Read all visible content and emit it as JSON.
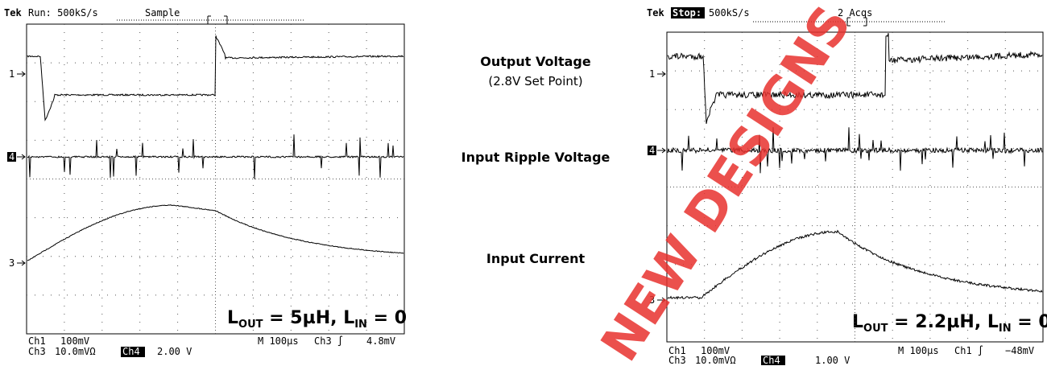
{
  "left_scope": {
    "tek": "Tek",
    "state": "Run: 500kS/s",
    "mode": "Sample",
    "markers": [
      "1",
      "4",
      "3"
    ],
    "caption": {
      "main1": "L",
      "sub1": "OUT",
      "main2": " = 5µH, L",
      "sub2": "IN",
      "main3": " = 0"
    },
    "status": {
      "ch1": "Ch1",
      "ch1_scale": "100mV",
      "ch3": "Ch3",
      "ch3_scale": "10.0mVΩ",
      "ch4": "Ch4",
      "ch4_scale": "2.00 V",
      "time": "M 100µs",
      "trigger": "Ch3 ∫",
      "level": "4.8mV"
    }
  },
  "labels": {
    "output": "Output Voltage",
    "setpoint": "(2.8V Set Point)",
    "ripple": "Input Ripple Voltage",
    "current": "Input Current"
  },
  "right_scope": {
    "tek": "Tek",
    "state": "Stop:",
    "rate": "500kS/s",
    "acqs": "2 Acqs",
    "markers": [
      "1",
      "4",
      "3"
    ],
    "caption": {
      "main1": "L",
      "sub1": "OUT",
      "main2": " = 2.2µH, L",
      "sub2": "IN",
      "main3": " = 0"
    },
    "status": {
      "ch1": "Ch1",
      "ch1_scale": "100mV",
      "ch3": "Ch3",
      "ch3_scale": "10.0mVΩ",
      "ch4": "Ch4",
      "ch4_scale": "1.00 V",
      "time": "M 100µs",
      "trigger": "Ch1 ∫",
      "level": "−48mV"
    }
  },
  "watermark": "NEW DESIGNS"
}
